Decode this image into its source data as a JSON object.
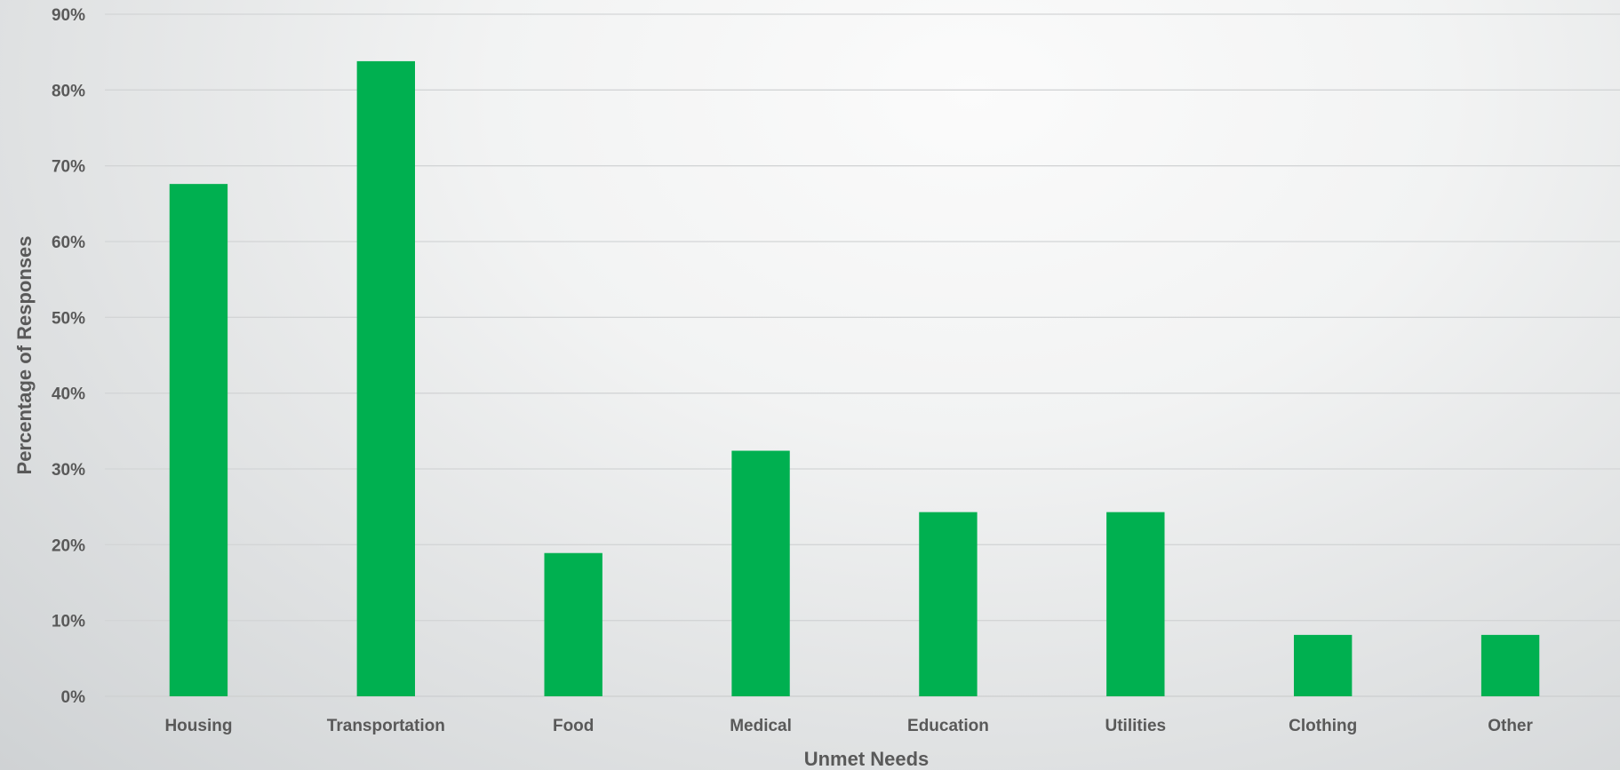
{
  "chart_data": {
    "type": "bar",
    "title": "",
    "xlabel": "Unmet Needs",
    "ylabel": "Percentage of Responses",
    "categories": [
      "Housing",
      "Transportation",
      "Food",
      "Medical",
      "Education",
      "Utilities",
      "Clothing",
      "Other"
    ],
    "values": [
      67.6,
      83.8,
      18.9,
      32.4,
      24.3,
      24.3,
      8.1,
      8.1
    ],
    "ylim": [
      0,
      90
    ],
    "yticks": [
      "0%",
      "10%",
      "20%",
      "30%",
      "40%",
      "50%",
      "60%",
      "70%",
      "80%",
      "90%"
    ],
    "grid": true,
    "legend": "none",
    "bar_color": "#00b050"
  }
}
